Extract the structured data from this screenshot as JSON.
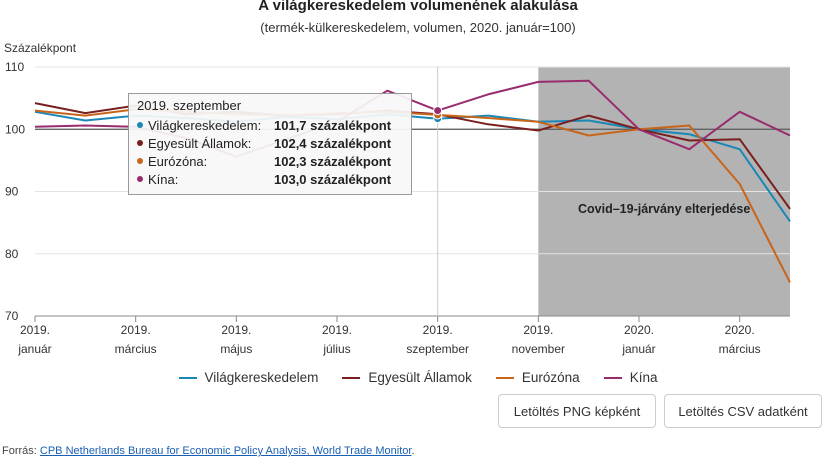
{
  "title": "A világkereskedelem volumenének alakulása",
  "subtitle": "(termék-külkereskedelem, volumen, 2020. január=100)",
  "colors": {
    "vilag": "#1a87b5",
    "usa": "#7a1f1f",
    "euro": "#c8651a",
    "kina": "#982c6f",
    "covid_band": "#b3b3b3"
  },
  "chart_data": {
    "type": "line",
    "ylabel": "Százalékpont",
    "ylim": [
      70,
      110
    ],
    "yticks": [
      70,
      80,
      90,
      100,
      110
    ],
    "xticks": [
      {
        "index": 0,
        "line1": "2019.",
        "line2": "január"
      },
      {
        "index": 2,
        "line1": "2019.",
        "line2": "március"
      },
      {
        "index": 4,
        "line1": "2019.",
        "line2": "május"
      },
      {
        "index": 6,
        "line1": "2019.",
        "line2": "július"
      },
      {
        "index": 8,
        "line1": "2019.",
        "line2": "szeptember"
      },
      {
        "index": 10,
        "line1": "2019.",
        "line2": "november"
      },
      {
        "index": 12,
        "line1": "2020.",
        "line2": "január"
      },
      {
        "index": 14,
        "line1": "2020.",
        "line2": "március"
      }
    ],
    "x": [
      "2019. január",
      "2019. február",
      "2019. március",
      "2019. április",
      "2019. május",
      "2019. június",
      "2019. július",
      "2019. augusztus",
      "2019. szeptember",
      "2019. október",
      "2019. november",
      "2019. december",
      "2020. január",
      "2020. február",
      "2020. március",
      "2020. április"
    ],
    "series": [
      {
        "name": "Világkereskedelem",
        "color_key": "vilag",
        "values": [
          102.8,
          101.4,
          102.2,
          101.8,
          101.2,
          102.0,
          101.6,
          102.4,
          101.7,
          102.2,
          101.2,
          101.4,
          100.0,
          99.2,
          96.8,
          85.2
        ]
      },
      {
        "name": "Egyesült Államok",
        "color_key": "usa",
        "values": [
          104.2,
          102.6,
          103.8,
          102.4,
          102.8,
          102.2,
          102.4,
          103.0,
          102.4,
          100.8,
          99.8,
          102.2,
          100.0,
          98.2,
          98.4,
          87.2
        ]
      },
      {
        "name": "Eurózóna",
        "color_key": "euro",
        "values": [
          103.0,
          102.2,
          103.2,
          102.8,
          102.4,
          102.2,
          102.6,
          102.8,
          102.3,
          101.8,
          101.2,
          99.0,
          100.0,
          100.6,
          91.2,
          75.4
        ]
      },
      {
        "name": "Kína",
        "color_key": "kina",
        "values": [
          100.4,
          100.6,
          100.4,
          98.6,
          95.6,
          98.4,
          101.2,
          106.2,
          103.0,
          105.6,
          107.6,
          107.8,
          100.0,
          96.8,
          102.8,
          99.0
        ]
      }
    ],
    "band": {
      "from_index": 10,
      "to_index": 15,
      "label": "Covid–19-járvány elterjedése"
    },
    "reference_line": 100,
    "tooltip": {
      "index": 8,
      "heading": "2019. szeptember",
      "rows": [
        {
          "name": "Világkereskedelem:",
          "value": "101,7 százalékpont",
          "color_key": "vilag"
        },
        {
          "name": "Egyesült Államok:",
          "value": "102,4 százalékpont",
          "color_key": "usa"
        },
        {
          "name": "Eurózóna:",
          "value": "102,3 százalékpont",
          "color_key": "euro"
        },
        {
          "name": "Kína:",
          "value": "103,0 százalékpont",
          "color_key": "kina"
        }
      ]
    }
  },
  "buttons": {
    "png_label": "Letöltés PNG képként",
    "csv_label": "Letöltés CSV adatként"
  },
  "source": {
    "prefix": "Forrás: ",
    "link_text": "CPB Netherlands Bureau for Economic Policy Analysis, World Trade Monitor",
    "suffix": "."
  }
}
